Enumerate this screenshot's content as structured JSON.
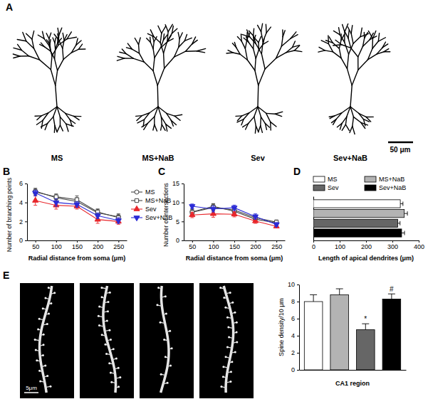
{
  "figure": {
    "panel_labels": [
      "A",
      "B",
      "C",
      "D",
      "E"
    ],
    "tracing_labels": [
      "MS",
      "MS+NaB",
      "Sev",
      "Sev+NaB"
    ],
    "tracing_scale_bar": "50 μm",
    "spine_scale_bar": "5μm"
  },
  "chart_data": [
    {
      "type": "line",
      "x": [
        50,
        100,
        150,
        200,
        250
      ],
      "xlim": [
        30,
        270
      ],
      "xticks": [
        50,
        100,
        150,
        200,
        250
      ],
      "ylim": [
        0,
        6
      ],
      "yticks": [
        0,
        2,
        4,
        6
      ],
      "x_label": "Radial distance from soma (μm)",
      "y_label": "Number of branching points",
      "legend": "right",
      "series": [
        {
          "name": "MS",
          "color": "#444444",
          "marker": "circle-open",
          "values": [
            5.2,
            4.5,
            4.1,
            2.9,
            2.5
          ],
          "errors": [
            0.3,
            0.3,
            0.4,
            0.4,
            0.3
          ]
        },
        {
          "name": "MS+NaB",
          "color": "#444444",
          "marker": "square-open",
          "values": [
            5.1,
            4.6,
            4.3,
            3.0,
            2.4
          ],
          "errors": [
            0.3,
            0.3,
            0.4,
            0.3,
            0.3
          ]
        },
        {
          "name": "Sev",
          "color": "#e8262b",
          "marker": "triangle-up",
          "values": [
            4.2,
            3.7,
            3.6,
            2.2,
            2.0
          ],
          "errors": [
            0.5,
            0.4,
            0.3,
            0.4,
            0.3
          ]
        },
        {
          "name": "Sev+NaB",
          "color": "#2b2bd6",
          "marker": "triangle-down",
          "values": [
            5.0,
            4.0,
            3.8,
            2.6,
            2.1
          ],
          "errors": [
            0.3,
            0.4,
            0.3,
            0.3,
            0.3
          ]
        }
      ]
    },
    {
      "type": "line",
      "x": [
        50,
        100,
        150,
        200,
        250
      ],
      "xlim": [
        30,
        270
      ],
      "xticks": [
        50,
        100,
        150,
        200,
        250
      ],
      "ylim": [
        0,
        15
      ],
      "yticks": [
        0,
        5,
        10,
        15
      ],
      "x_label": "Radial distance from soma (μm)",
      "y_label": "Number of intersections",
      "series": [
        {
          "color": "#444444",
          "marker": "circle-open",
          "values": [
            7.5,
            9.0,
            7.7,
            5.6,
            4.6
          ],
          "errors": [
            0.8,
            0.7,
            0.6,
            0.7,
            0.5
          ]
        },
        {
          "color": "#444444",
          "marker": "square-open",
          "values": [
            7.4,
            8.7,
            8.0,
            6.0,
            4.8
          ],
          "errors": [
            0.8,
            0.9,
            0.8,
            0.7,
            0.6
          ]
        },
        {
          "color": "#e8262b",
          "marker": "triangle-up",
          "values": [
            6.7,
            7.0,
            6.9,
            5.1,
            3.7
          ],
          "errors": [
            0.7,
            0.9,
            0.7,
            0.6,
            0.4
          ]
        },
        {
          "color": "#2b2bd6",
          "marker": "triangle-down",
          "values": [
            9.0,
            8.3,
            8.6,
            6.3,
            4.2
          ],
          "errors": [
            0.6,
            0.8,
            0.7,
            0.7,
            0.5
          ]
        }
      ]
    },
    {
      "type": "bar",
      "orientation": "horizontal",
      "categories": [
        null
      ],
      "xlim": [
        0,
        400
      ],
      "xticks": [
        0,
        100,
        200,
        300,
        400
      ],
      "x_label": "Length of apical dendrites (μm)",
      "tick_labels": "x",
      "legend": "top",
      "series": [
        {
          "name": "MS",
          "color": "#ffffff",
          "values": [
            330
          ],
          "errors": [
            10
          ]
        },
        {
          "name": "MS+NaB",
          "color": "#b3b3b3",
          "values": [
            345
          ],
          "errors": [
            12
          ]
        },
        {
          "name": "Sev",
          "color": "#666666",
          "values": [
            320
          ],
          "errors": [
            9
          ]
        },
        {
          "name": "Sev+NaB",
          "color": "#000000",
          "values": [
            335
          ],
          "errors": [
            11
          ]
        }
      ]
    },
    {
      "type": "bar",
      "categories": [
        null,
        null,
        null,
        null
      ],
      "values": [
        8.0,
        8.8,
        4.7,
        8.3
      ],
      "errors": [
        0.8,
        0.7,
        0.7,
        0.6
      ],
      "colors": [
        "#ffffff",
        "#b3b3b3",
        "#666666",
        "#000000"
      ],
      "annotations": [
        null,
        null,
        "*",
        "#"
      ],
      "ylim": [
        0,
        10
      ],
      "yticks": [
        0,
        2,
        4,
        6,
        8,
        10
      ],
      "y_label": "Spine density/10 μm",
      "x_label": "CA1 region"
    }
  ]
}
